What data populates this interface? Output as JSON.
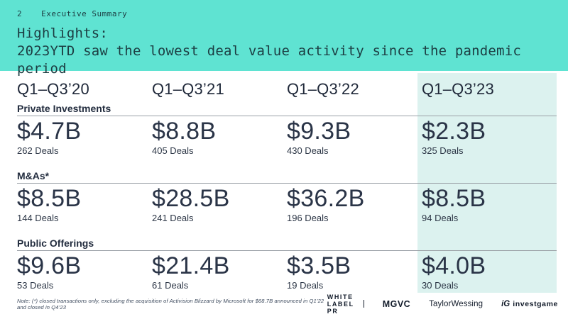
{
  "slide": {
    "page_number": "2",
    "section_title": "Executive Summary",
    "headline_line1": "Highlights:",
    "headline_line2": "2023YTD saw the lowest deal value activity since the pandemic period"
  },
  "table": {
    "column_headers": [
      "Q1–Q3’20",
      "Q1–Q3’21",
      "Q1–Q3’22",
      "Q1–Q3’23"
    ],
    "highlighted_column": "Q1–Q3’23",
    "sections": [
      {
        "label": "Private Investments",
        "cells": [
          {
            "value": "$4.7B",
            "deals": "262 Deals"
          },
          {
            "value": "$8.8B",
            "deals": "405 Deals"
          },
          {
            "value": "$9.3B",
            "deals": "430 Deals"
          },
          {
            "value": "$2.3B",
            "deals": "325 Deals"
          }
        ]
      },
      {
        "label": "M&As*",
        "cells": [
          {
            "value": "$8.5B",
            "deals": "144 Deals"
          },
          {
            "value": "$28.5B",
            "deals": "241 Deals"
          },
          {
            "value": "$36.2B",
            "deals": "196 Deals"
          },
          {
            "value": "$8.5B",
            "deals": "94 Deals"
          }
        ]
      },
      {
        "label": "Public Offerings",
        "cells": [
          {
            "value": "$9.6B",
            "deals": "53 Deals"
          },
          {
            "value": "$21.4B",
            "deals": "61 Deals"
          },
          {
            "value": "$3.5B",
            "deals": "19 Deals"
          },
          {
            "value": "$4.0B",
            "deals": "30 Deals"
          }
        ]
      }
    ]
  },
  "footer": {
    "note": "Note: (*) closed transactions only, excluding the acquisition of Activision Blizzard by Microsoft for $68.7B announced in Q1’22 and closed in Q4’23",
    "logos": {
      "white_label_pr": "WHITE LABEL PR",
      "mgvc": "MGVC",
      "taylor_wessing": "TaylorWessing",
      "investgame_mark": "iG",
      "investgame": "investgame"
    }
  },
  "colors": {
    "header_background": "#5fe3d2",
    "header_text": "#1c3d42",
    "highlight_column": "#dcf2ef",
    "body_text": "#242e40",
    "divider": "#9aa0a6"
  }
}
